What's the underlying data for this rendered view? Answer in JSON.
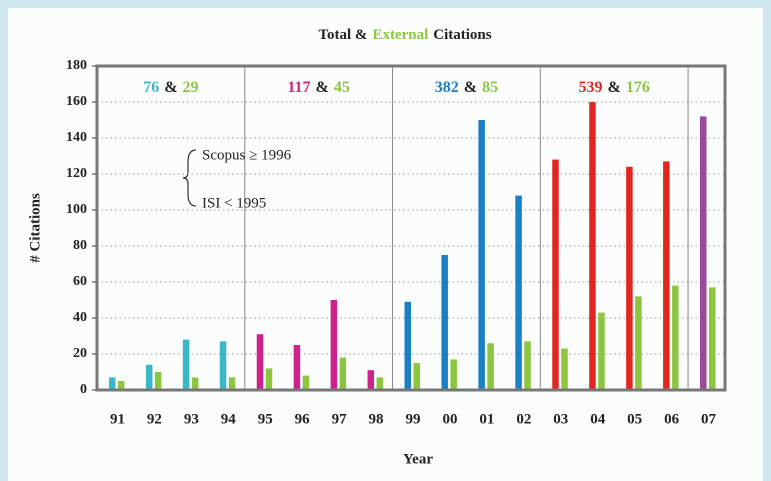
{
  "chart_data": {
    "type": "bar",
    "title_parts": [
      "Total &",
      "External",
      "Citations"
    ],
    "title_colors": [
      "#222222",
      "#8cc63f",
      "#222222"
    ],
    "x_label": "Year",
    "y_label": "# Citations",
    "categories": [
      "91",
      "92",
      "93",
      "94",
      "95",
      "96",
      "97",
      "98",
      "99",
      "00",
      "01",
      "02",
      "03",
      "04",
      "05",
      "06",
      "07"
    ],
    "series": [
      {
        "name": "Total",
        "colors": [
          "#3bb8c8",
          "#3bb8c8",
          "#3bb8c8",
          "#3bb8c8",
          "#d0208a",
          "#d0208a",
          "#d0208a",
          "#d0208a",
          "#1b7fc4",
          "#1b7fc4",
          "#1b7fc4",
          "#1b7fc4",
          "#e0261e",
          "#e0261e",
          "#e0261e",
          "#e0261e",
          "#9b4a9a"
        ],
        "values": [
          7,
          14,
          28,
          27,
          31,
          25,
          50,
          11,
          49,
          75,
          150,
          108,
          128,
          160,
          124,
          127,
          152
        ]
      },
      {
        "name": "External",
        "color": "#8cc63f",
        "values": [
          5,
          10,
          7,
          7,
          12,
          8,
          18,
          7,
          15,
          17,
          26,
          27,
          23,
          43,
          52,
          58,
          57
        ]
      }
    ],
    "group_labels": [
      {
        "total": "76",
        "joiner": "&",
        "external": "29",
        "color": "#3bb8c8"
      },
      {
        "total": "117",
        "joiner": "&",
        "external": "45",
        "color": "#d0208a"
      },
      {
        "total": "382",
        "joiner": "&",
        "external": "85",
        "color": "#1b7fc4"
      },
      {
        "total": "539",
        "joiner": "&",
        "external": "176",
        "color": "#e0261e"
      }
    ],
    "notes": [
      "Scopus ≥ 1996",
      "ISI < 1995"
    ],
    "ylim": [
      0,
      180
    ],
    "yticks": [
      0,
      20,
      40,
      60,
      80,
      100,
      120,
      140,
      160,
      180
    ],
    "grid": true
  }
}
